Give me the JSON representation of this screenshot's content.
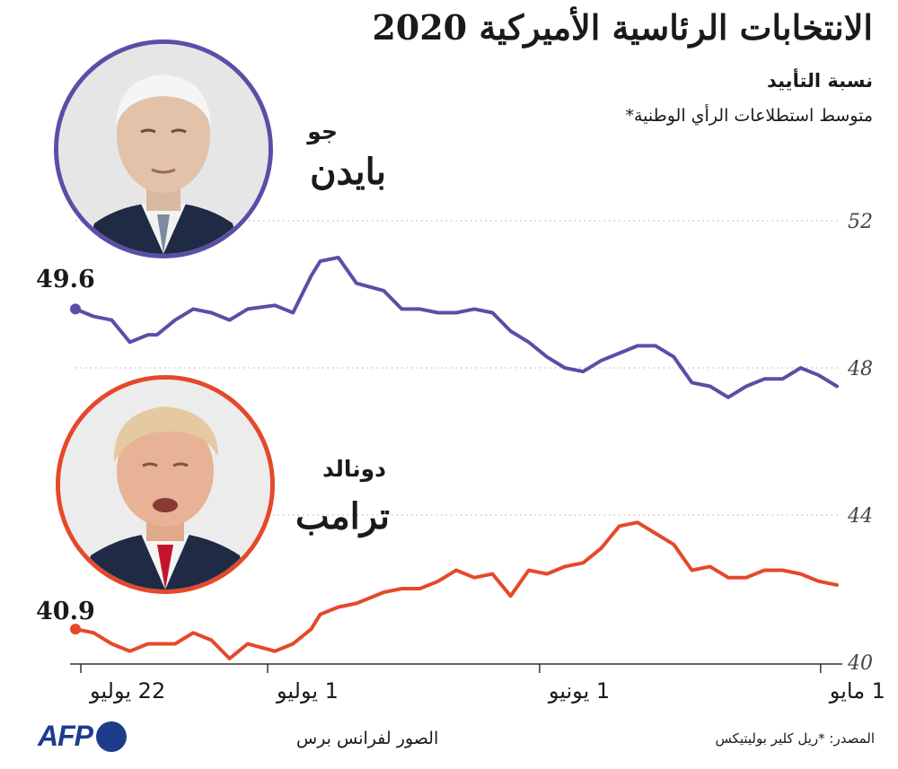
{
  "header": {
    "title": "الانتخابات الرئاسية الأميركية 2020",
    "subtitle": "نسبة التأييد",
    "note": "متوسط استطلاعات الرأي الوطنية*"
  },
  "candidates": {
    "biden": {
      "first": "جو",
      "last": "بايدن",
      "color": "#5a4fa6",
      "latest": "49.6"
    },
    "trump": {
      "first": "دونالد",
      "last": "ترامب",
      "color": "#e5482b",
      "latest": "40.9"
    }
  },
  "footer": {
    "photo_credit": "الصور لفرانس برس",
    "source": "المصدر: *ريل كلير بوليتيكس",
    "logo": "AFP"
  },
  "chart_data": {
    "type": "line",
    "x_order": "newest on the left, oldest on the right",
    "ylim": [
      40,
      52
    ],
    "y_ticks": [
      {
        "value": 52,
        "label": "52"
      },
      {
        "value": 48,
        "label": "48"
      },
      {
        "value": 44,
        "label": "44"
      },
      {
        "value": 40,
        "label": "40"
      }
    ],
    "x_ticks": [
      "22 يوليو",
      "1 يوليو",
      "1 يونيو",
      "1 مايو"
    ],
    "x_tick_days_before_latest": [
      0,
      21,
      51,
      82
    ],
    "x_days_before_latest": [
      0,
      2,
      4,
      6,
      8,
      9,
      11,
      13,
      15,
      17,
      19,
      22,
      24,
      26,
      27,
      29,
      31,
      34,
      36,
      38,
      40,
      42,
      44,
      46,
      48,
      50,
      52,
      54,
      56,
      58,
      60,
      62,
      64,
      66,
      68,
      70,
      72,
      74,
      76,
      78,
      80,
      82,
      84
    ],
    "series": [
      {
        "name": "بايدن",
        "color": "#5a4fa6",
        "values": [
          49.6,
          49.4,
          49.3,
          48.7,
          48.9,
          48.9,
          49.3,
          49.6,
          49.5,
          49.3,
          49.6,
          49.7,
          49.5,
          50.5,
          50.9,
          51.0,
          50.3,
          50.1,
          49.6,
          49.6,
          49.5,
          49.5,
          49.6,
          49.5,
          49.0,
          48.7,
          48.3,
          48.0,
          47.9,
          48.2,
          48.4,
          48.6,
          48.6,
          48.3,
          47.6,
          47.5,
          47.2,
          47.5,
          47.7,
          47.7,
          48.0,
          47.8,
          47.5
        ]
      },
      {
        "name": "ترامب",
        "color": "#e5482b",
        "values": [
          40.9,
          40.8,
          40.5,
          40.3,
          40.5,
          40.5,
          40.5,
          40.8,
          40.6,
          40.1,
          40.5,
          40.3,
          40.5,
          40.9,
          41.3,
          41.5,
          41.6,
          41.9,
          42.0,
          42.0,
          42.2,
          42.5,
          42.3,
          42.4,
          41.8,
          42.5,
          42.4,
          42.6,
          42.7,
          43.1,
          43.7,
          43.8,
          43.5,
          43.2,
          42.5,
          42.6,
          42.3,
          42.3,
          42.5,
          42.5,
          42.4,
          42.2,
          42.1
        ]
      }
    ]
  }
}
